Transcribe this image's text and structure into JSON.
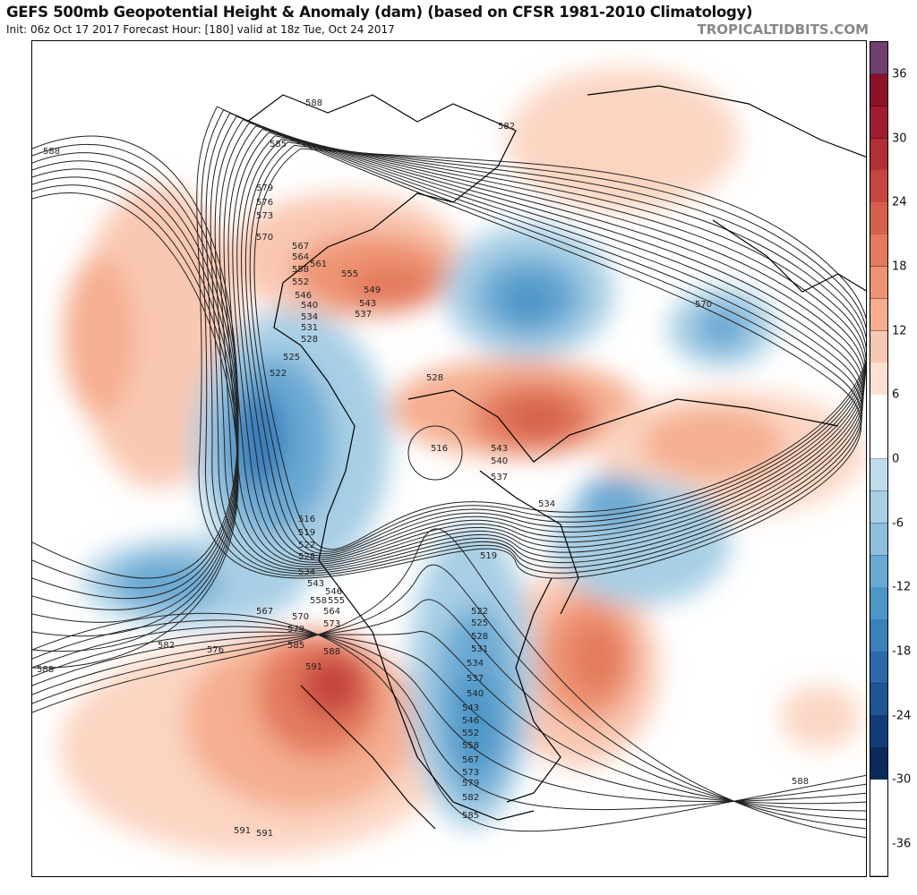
{
  "header": {
    "title": "GEFS 500mb Geopotential Height & Anomaly (dam) (based on CFSR 1981-2010 Climatology)",
    "subtitle": "Init: 06z Oct 17 2017   Forecast Hour: [180]   valid at 18z Tue, Oct 24 2017",
    "brand": "TROPICALTIDBITS.COM"
  },
  "colorbar": {
    "range": [
      -39,
      39
    ],
    "step": 3,
    "tick_labels": [
      "36",
      "30",
      "24",
      "18",
      "12",
      "6",
      "0",
      "-6",
      "-12",
      "-18",
      "-24",
      "-30",
      "-36"
    ],
    "tick_values": [
      36,
      30,
      24,
      18,
      12,
      6,
      0,
      -6,
      -12,
      -18,
      -24,
      -30,
      -36
    ],
    "colors": [
      "#0b2a5c",
      "#113d78",
      "#1f5693",
      "#2b69aa",
      "#3b7fbb",
      "#4e96c8",
      "#6aa9d3",
      "#8ebfde",
      "#a8cfe5",
      "#c0dcec",
      "#ffffff",
      "#ffffff",
      "#fde0d2",
      "#f9c8b2",
      "#f5ae90",
      "#ee9473",
      "#e37a5d",
      "#d5604c",
      "#c6453f",
      "#b32f37",
      "#a01d30",
      "#8c1028",
      "#6f4070"
    ]
  },
  "contour_labels": [
    "591",
    "588",
    "582",
    "588",
    "585",
    "579",
    "576",
    "573",
    "570",
    "567",
    "564",
    "561",
    "558",
    "555",
    "552",
    "549",
    "546",
    "543",
    "540",
    "537",
    "534",
    "531",
    "528",
    "525",
    "522",
    "570",
    "528",
    "516",
    "543",
    "540",
    "537",
    "534",
    "519",
    "516",
    "519",
    "522",
    "528",
    "534",
    "543",
    "546",
    "558",
    "555",
    "564",
    "567",
    "570",
    "573",
    "579",
    "585",
    "588",
    "591",
    "576",
    "582",
    "588",
    "522",
    "525",
    "528",
    "531",
    "534",
    "537",
    "540",
    "543",
    "546",
    "552",
    "558",
    "567",
    "573",
    "579",
    "582",
    "585",
    "588",
    "591"
  ]
}
